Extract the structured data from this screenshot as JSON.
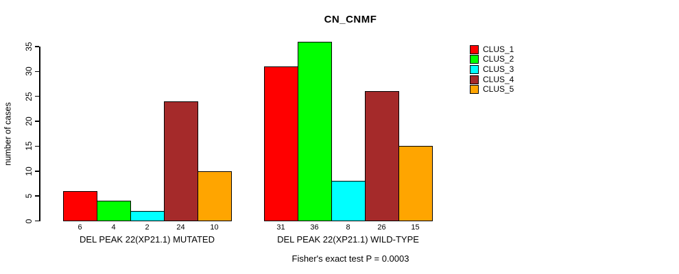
{
  "chart_data": {
    "type": "bar",
    "title": "CN_CNMF",
    "ylabel": "number of cases",
    "xlabel": "",
    "ylim": [
      0,
      35
    ],
    "yticks": [
      0,
      5,
      10,
      15,
      20,
      25,
      30,
      35
    ],
    "grid": false,
    "legend_position": "right",
    "legend": [
      {
        "label": "CLUS_1",
        "color": "#FF0000"
      },
      {
        "label": "CLUS_2",
        "color": "#00FF00"
      },
      {
        "label": "CLUS_3",
        "color": "#00FFFF"
      },
      {
        "label": "CLUS_4",
        "color": "#A52A2A"
      },
      {
        "label": "CLUS_5",
        "color": "#FFA500"
      }
    ],
    "categories": [
      "DEL PEAK 22(XP21.1) MUTATED",
      "DEL PEAK 22(XP21.1) WILD-TYPE"
    ],
    "series": [
      {
        "name": "CLUS_1",
        "values": [
          6,
          31
        ]
      },
      {
        "name": "CLUS_2",
        "values": [
          4,
          36
        ]
      },
      {
        "name": "CLUS_3",
        "values": [
          2,
          8
        ]
      },
      {
        "name": "CLUS_4",
        "values": [
          24,
          26
        ]
      },
      {
        "name": "CLUS_5",
        "values": [
          10,
          15
        ]
      }
    ],
    "groups": [
      {
        "label": "DEL PEAK 22(XP21.1) MUTATED",
        "values": [
          6,
          4,
          2,
          24,
          10
        ]
      },
      {
        "label": "DEL PEAK 22(XP21.1) WILD-TYPE",
        "values": [
          31,
          36,
          8,
          26,
          15
        ]
      }
    ],
    "bar_value_labels_shown": true,
    "subtitle": "Fisher's exact test P = 0.0003"
  }
}
